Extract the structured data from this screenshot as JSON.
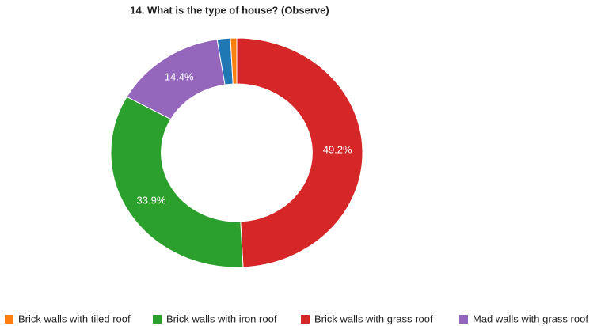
{
  "chart_data": {
    "type": "donut",
    "title": "14. What is the type of house? (Observe)",
    "categories": [
      "Brick walls with tiled roof",
      "Brick walls with iron roof",
      "Brick walls with grass roof",
      "Mad walls with grass roof",
      null
    ],
    "values": [
      0.8,
      33.9,
      49.2,
      14.4,
      1.7
    ],
    "value_labels": [
      null,
      "33.9%",
      "49.2%",
      "14.4%",
      null
    ],
    "colors": [
      "#ff7f0e",
      "#2ca02c",
      "#d62728",
      "#9467bd",
      "#1f77b4"
    ],
    "legend": "bottom"
  }
}
